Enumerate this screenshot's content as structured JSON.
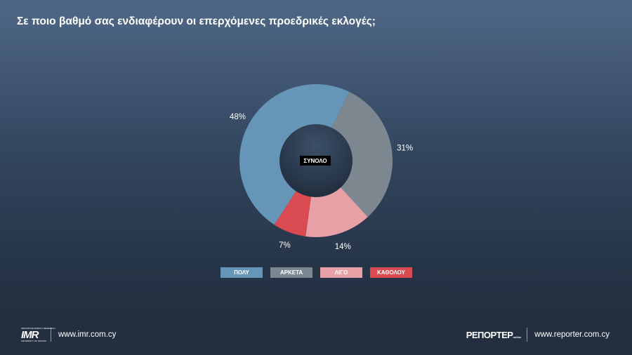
{
  "title": "Σε ποιο βαθμό σας ενδιαφέρουν οι επερχόμενες προεδρικές εκλογές;",
  "chart_data": {
    "type": "pie",
    "variant": "donut",
    "center_label": "ΣΥΝΟΛΟ",
    "categories": [
      "ΠΟΛΥ",
      "ΑΡΚΕΤΑ",
      "ΛΙΓΟ",
      "ΚΑΘΟΛΟΥ"
    ],
    "values": [
      48,
      31,
      14,
      7
    ],
    "value_labels": [
      "48%",
      "31%",
      "14%",
      "7%"
    ],
    "colors": [
      "#6595b7",
      "#7d8790",
      "#e7a1a6",
      "#d94a51"
    ],
    "legend_position": "bottom"
  },
  "footer": {
    "left_logo_big": "IMR",
    "left_logo_top": "INNOVATIVE MARKET RESEARCH",
    "left_logo_bottom": "UNIVERSITY OF NICOSIA",
    "left_url": "www.imr.com.cy",
    "right_logo": "ΡΕΠΟΡΤΕΡ",
    "right_logo_sub": "online",
    "right_url": "www.reporter.com.cy"
  }
}
